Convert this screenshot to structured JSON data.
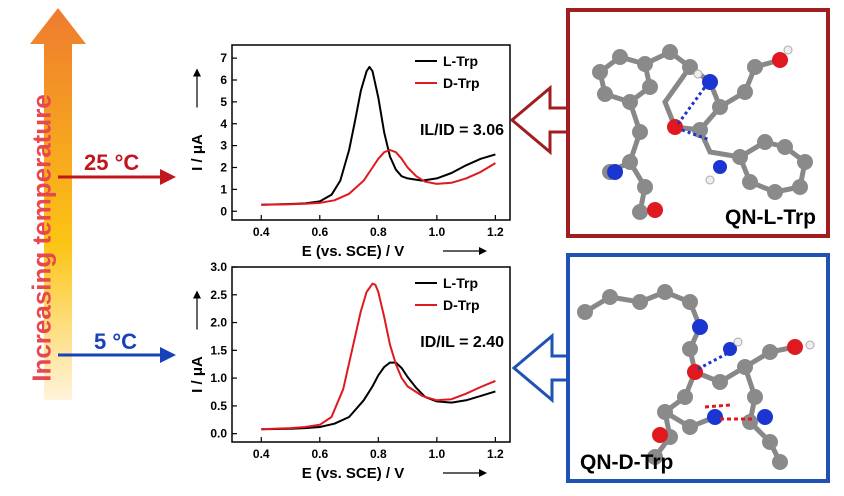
{
  "temperature_axis": {
    "label": "Increasing temperature",
    "gradient_top": "#ee7b2f",
    "gradient_mid": "#fcc414",
    "gradient_bottom": "#fff4dc"
  },
  "temp_markers": [
    {
      "label": "25 °C",
      "color": "#c0171c"
    },
    {
      "label": "5 °C",
      "color": "#1840b8"
    }
  ],
  "chart_data": [
    {
      "type": "line",
      "xlabel": "E (vs. SCE) / V",
      "ylabel": "I / μA",
      "xlim": [
        0.3,
        1.25
      ],
      "ylim": [
        -0.4,
        7.6
      ],
      "xticks": [
        0.4,
        0.6,
        0.8,
        1.0,
        1.2
      ],
      "yticks": [
        0,
        1,
        2,
        3,
        4,
        5,
        6,
        7
      ],
      "annotation": "IL/ID = 3.06",
      "legend_position": "top-right",
      "series": [
        {
          "name": "L-Trp",
          "color": "#000000",
          "x": [
            0.4,
            0.5,
            0.55,
            0.6,
            0.64,
            0.67,
            0.7,
            0.72,
            0.74,
            0.76,
            0.77,
            0.78,
            0.8,
            0.82,
            0.84,
            0.86,
            0.88,
            0.9,
            0.95,
            1.0,
            1.05,
            1.1,
            1.15,
            1.2
          ],
          "y": [
            0.3,
            0.33,
            0.36,
            0.45,
            0.75,
            1.4,
            2.8,
            4.1,
            5.5,
            6.4,
            6.6,
            6.4,
            5.2,
            3.6,
            2.5,
            1.9,
            1.6,
            1.5,
            1.4,
            1.5,
            1.75,
            2.1,
            2.4,
            2.6
          ]
        },
        {
          "name": "D-Trp",
          "color": "#e0191f",
          "x": [
            0.4,
            0.5,
            0.55,
            0.6,
            0.65,
            0.7,
            0.75,
            0.78,
            0.8,
            0.82,
            0.84,
            0.86,
            0.88,
            0.9,
            0.93,
            0.96,
            1.0,
            1.05,
            1.1,
            1.15,
            1.2
          ],
          "y": [
            0.3,
            0.32,
            0.34,
            0.38,
            0.5,
            0.8,
            1.4,
            2.0,
            2.4,
            2.7,
            2.8,
            2.7,
            2.4,
            2.0,
            1.6,
            1.35,
            1.25,
            1.3,
            1.5,
            1.8,
            2.2
          ]
        }
      ]
    },
    {
      "type": "line",
      "xlabel": "E (vs. SCE) / V",
      "ylabel": "I / μA",
      "xlim": [
        0.3,
        1.25
      ],
      "ylim": [
        -0.15,
        3.0
      ],
      "xticks": [
        0.4,
        0.6,
        0.8,
        1.0,
        1.2
      ],
      "yticks": [
        0.0,
        0.5,
        1.0,
        1.5,
        2.0,
        2.5,
        3.0
      ],
      "annotation": "ID/IL = 2.40",
      "legend_position": "top-right",
      "series": [
        {
          "name": "L-Trp",
          "color": "#000000",
          "x": [
            0.4,
            0.5,
            0.55,
            0.6,
            0.65,
            0.7,
            0.75,
            0.78,
            0.8,
            0.82,
            0.84,
            0.86,
            0.88,
            0.9,
            0.93,
            0.96,
            1.0,
            1.05,
            1.1,
            1.15,
            1.2
          ],
          "y": [
            0.08,
            0.09,
            0.1,
            0.12,
            0.18,
            0.3,
            0.6,
            0.85,
            1.05,
            1.2,
            1.28,
            1.28,
            1.18,
            1.02,
            0.82,
            0.66,
            0.58,
            0.56,
            0.6,
            0.68,
            0.76
          ]
        },
        {
          "name": "D-Trp",
          "color": "#e0191f",
          "x": [
            0.4,
            0.5,
            0.55,
            0.6,
            0.64,
            0.68,
            0.71,
            0.74,
            0.76,
            0.78,
            0.79,
            0.8,
            0.82,
            0.84,
            0.86,
            0.88,
            0.9,
            0.95,
            1.0,
            1.05,
            1.1,
            1.15,
            1.2
          ],
          "y": [
            0.08,
            0.1,
            0.12,
            0.16,
            0.3,
            0.8,
            1.5,
            2.2,
            2.55,
            2.7,
            2.68,
            2.55,
            2.1,
            1.6,
            1.25,
            1.0,
            0.85,
            0.68,
            0.6,
            0.62,
            0.72,
            0.84,
            0.95
          ]
        }
      ]
    }
  ],
  "complexes": [
    {
      "caption": "QN-L-Trp",
      "border_color": "#a01e21"
    },
    {
      "caption": "QN-D-Trp",
      "border_color": "#1f52b4"
    }
  ]
}
